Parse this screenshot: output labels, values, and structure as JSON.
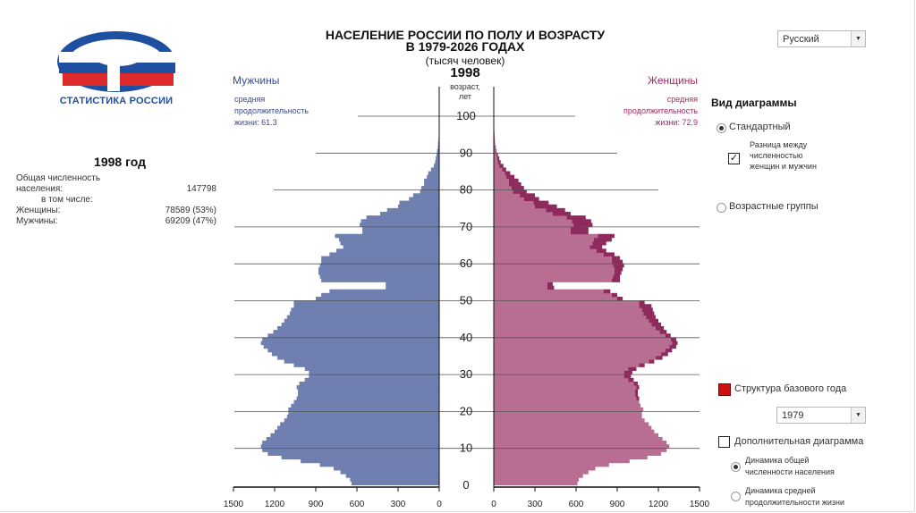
{
  "header": {
    "title_line1": "НАСЕЛЕНИЕ РОССИИ ПО ПОЛУ И ВОЗРАСТУ",
    "title_line2": "В 1979-2026 ГОДАХ",
    "subtitle": "(тысяч человек)",
    "year": "1998",
    "age_axis_label_line1": "возраст,",
    "age_axis_label_line2": "лет"
  },
  "language": {
    "selected": "Русский"
  },
  "logo": {
    "caption": "СТАТИСТИКА РОССИИ"
  },
  "colors": {
    "men": "#6f7faf",
    "women": "#b86e92",
    "women_diff": "#8f2a5c",
    "men_text": "#3b4a8c",
    "women_text": "#a02b62",
    "base_structure": "#cc1111",
    "logo_blue": "#1e4fa0",
    "logo_red": "#dd2a2a"
  },
  "men_panel": {
    "label": "Мужчины",
    "life_line1": "средняя",
    "life_line2": "продолжительность",
    "life_line3": "жизни: 61.3"
  },
  "women_panel": {
    "label": "Женщины",
    "life_line1": "средняя",
    "life_line2": "продолжительность",
    "life_line3": "жизни: 72.9"
  },
  "summary": {
    "year_heading": "1998 год",
    "total_label_line1": "Общая численность",
    "total_label_line2": "населения:",
    "total_value": "147798",
    "including_label": "в том числе:",
    "women_label": "Женщины:",
    "women_value": "78589 (53%)",
    "men_label": "Мужчины:",
    "men_value": "69209 (47%)"
  },
  "controls": {
    "view_title": "Вид диаграммы",
    "standard_label": "Стандартный",
    "diff_line1": "Разница между",
    "diff_line2": "численностью",
    "diff_line3": "женщин и мужчин",
    "diff_check": "✓",
    "age_groups_label": "Возрастные группы",
    "base_structure_label": "Структура базового года",
    "base_year_selected": "1979",
    "extra_diagram_label": "Дополнительная диаграмма",
    "dyn_total_line1": "Динамика общей",
    "dyn_total_line2": "численности населения",
    "dyn_life_line1": "Динамика средней",
    "dyn_life_line2": "продолжительности жизни"
  },
  "chart_data": {
    "type": "bar",
    "orientation": "horizontal",
    "title": "Население России по полу и возрасту, 1998",
    "unit": "тысяч человек",
    "age_labels": [
      "0",
      "10",
      "20",
      "30",
      "40",
      "50",
      "60",
      "70",
      "80",
      "90",
      "100"
    ],
    "x_tick_labels": [
      "1500",
      "1200",
      "900",
      "600",
      "300",
      "0"
    ],
    "x_ticks": [
      1500,
      1200,
      900,
      600,
      300,
      0
    ],
    "xlim": [
      0,
      1500
    ],
    "ylim": [
      0,
      100
    ],
    "ages": [
      0,
      1,
      2,
      3,
      4,
      5,
      6,
      7,
      8,
      9,
      10,
      11,
      12,
      13,
      14,
      15,
      16,
      17,
      18,
      19,
      20,
      21,
      22,
      23,
      24,
      25,
      26,
      27,
      28,
      29,
      30,
      31,
      32,
      33,
      34,
      35,
      36,
      37,
      38,
      39,
      40,
      41,
      42,
      43,
      44,
      45,
      46,
      47,
      48,
      49,
      50,
      51,
      52,
      53,
      54,
      55,
      56,
      57,
      58,
      59,
      60,
      61,
      62,
      63,
      64,
      65,
      66,
      67,
      68,
      69,
      70,
      71,
      72,
      73,
      74,
      75,
      76,
      77,
      78,
      79,
      80,
      81,
      82,
      83,
      84,
      85,
      86,
      87,
      88,
      89,
      90,
      91,
      92,
      93,
      94,
      95,
      96,
      97,
      98,
      99,
      100
    ],
    "series": [
      {
        "name": "Мужчины",
        "values": [
          640,
          650,
          680,
          720,
          770,
          870,
          1010,
          1150,
          1250,
          1290,
          1300,
          1290,
          1260,
          1230,
          1200,
          1180,
          1160,
          1130,
          1110,
          1100,
          1100,
          1080,
          1060,
          1040,
          1030,
          1030,
          1040,
          1020,
          980,
          950,
          950,
          980,
          1060,
          1130,
          1180,
          1220,
          1250,
          1280,
          1300,
          1290,
          1250,
          1210,
          1180,
          1150,
          1130,
          1110,
          1090,
          1080,
          1060,
          1060,
          900,
          860,
          800,
          390,
          390,
          860,
          870,
          880,
          880,
          870,
          860,
          860,
          800,
          750,
          700,
          720,
          730,
          760,
          560,
          560,
          580,
          570,
          530,
          430,
          380,
          300,
          290,
          220,
          190,
          140,
          130,
          110,
          110,
          90,
          80,
          60,
          40,
          30,
          25,
          20,
          15,
          10,
          8,
          5,
          4,
          3,
          2,
          1,
          1,
          0,
          0
        ]
      },
      {
        "name": "Женщины",
        "values": [
          610,
          620,
          650,
          690,
          740,
          840,
          990,
          1120,
          1220,
          1260,
          1280,
          1260,
          1230,
          1200,
          1170,
          1150,
          1130,
          1100,
          1080,
          1080,
          1090,
          1070,
          1060,
          1060,
          1050,
          1050,
          1060,
          1050,
          1020,
          1000,
          1010,
          1040,
          1100,
          1170,
          1230,
          1270,
          1300,
          1330,
          1340,
          1330,
          1290,
          1260,
          1240,
          1220,
          1200,
          1180,
          1170,
          1160,
          1150,
          1100,
          940,
          900,
          850,
          440,
          430,
          920,
          920,
          930,
          940,
          950,
          940,
          920,
          880,
          820,
          790,
          820,
          860,
          880,
          690,
          690,
          720,
          710,
          670,
          560,
          520,
          460,
          400,
          330,
          300,
          240,
          220,
          200,
          180,
          150,
          120,
          90,
          70,
          50,
          40,
          30,
          20,
          15,
          10,
          8,
          6,
          4,
          3,
          2,
          1,
          1,
          0
        ]
      }
    ]
  }
}
